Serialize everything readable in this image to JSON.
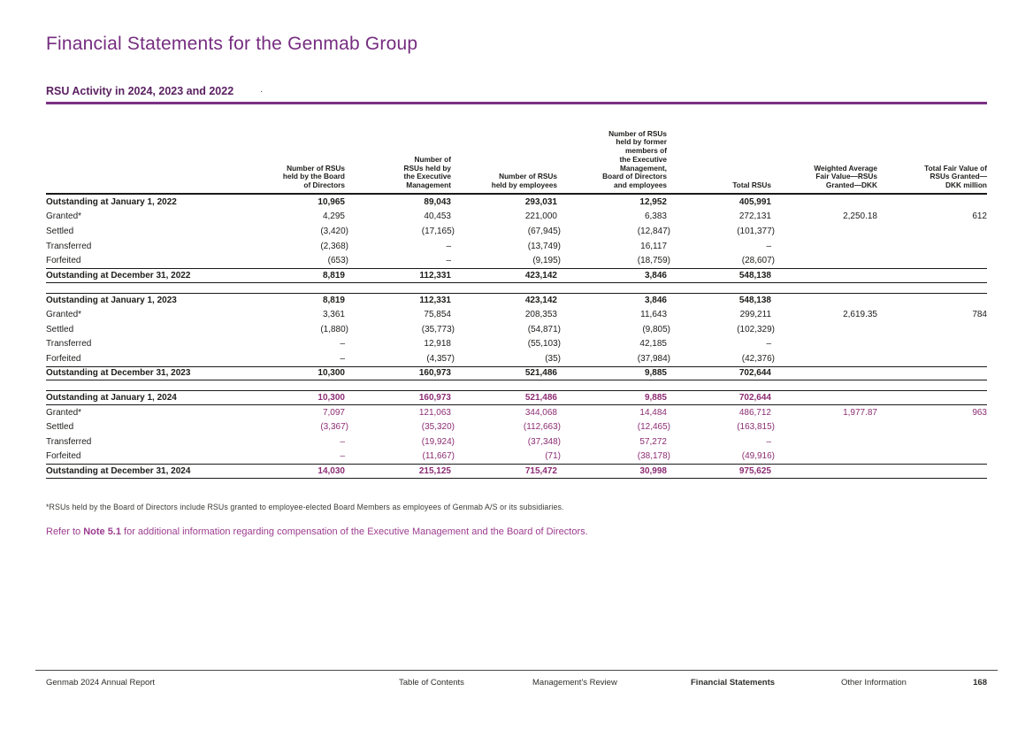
{
  "page": {
    "title": "Financial Statements for the Genmab Group",
    "section_heading": "RSU Activity in 2024, 2023 and 2022",
    "heading_dot": "·"
  },
  "colors": {
    "brand_purple": "#762d80",
    "heading_purple": "#5a2161",
    "rule_purple": "#7b3184",
    "highlight_2024_values": "#8c2d73",
    "note_purple": "#9c3b8e",
    "text_black": "#1d1d1b"
  },
  "table": {
    "column_headers": [
      "",
      "Number of RSUs\nheld by the Board\nof Directors",
      "Number of\nRSUs held by\nthe Executive\nManagement",
      "Number of RSUs\nheld by employees",
      "Number of RSUs\nheld by former\nmembers of\nthe Executive\nManagement,\nBoard of Directors\nand employees",
      "Total RSUs",
      "Weighted Average\nFair Value—RSUs\nGranted—DKK",
      "Total Fair Value of\nRSUs Granted—\nDKK million"
    ],
    "sections": [
      {
        "year": "2022",
        "highlight": false,
        "rows": [
          {
            "label": "Outstanding at January 1, 2022",
            "bold": true,
            "values": [
              "10,965",
              "89,043",
              "293,031",
              "12,952",
              "405,991",
              "",
              ""
            ]
          },
          {
            "label": "Granted*",
            "bold": false,
            "values": [
              "4,295",
              "40,453",
              "221,000",
              "6,383",
              "272,131",
              "2,250.18",
              "612"
            ]
          },
          {
            "label": "Settled",
            "bold": false,
            "values": [
              "(3,420)",
              "(17,165)",
              "(67,945)",
              "(12,847)",
              "(101,377)",
              "",
              ""
            ]
          },
          {
            "label": "Transferred",
            "bold": false,
            "values": [
              "(2,368)",
              "–",
              "(13,749)",
              "16,117",
              "–",
              "",
              ""
            ]
          },
          {
            "label": "Forfeited",
            "bold": false,
            "values": [
              "(653)",
              "–",
              "(9,195)",
              "(18,759)",
              "(28,607)",
              "",
              ""
            ]
          },
          {
            "label": "Outstanding at December 31, 2022",
            "bold": true,
            "rule_top": true,
            "rule_bottom": "thick",
            "values": [
              "8,819",
              "112,331",
              "423,142",
              "3,846",
              "548,138",
              "",
              ""
            ]
          }
        ]
      },
      {
        "year": "2023",
        "highlight": false,
        "rows": [
          {
            "label": "Outstanding at January 1, 2023",
            "bold": true,
            "rule_top": true,
            "values": [
              "8,819",
              "112,331",
              "423,142",
              "3,846",
              "548,138",
              "",
              ""
            ]
          },
          {
            "label": "Granted*",
            "bold": false,
            "values": [
              "3,361",
              "75,854",
              "208,353",
              "11,643",
              "299,211",
              "2,619.35",
              "784"
            ]
          },
          {
            "label": "Settled",
            "bold": false,
            "values": [
              "(1,880)",
              "(35,773)",
              "(54,871)",
              "(9,805)",
              "(102,329)",
              "",
              ""
            ]
          },
          {
            "label": "Transferred",
            "bold": false,
            "values": [
              "–",
              "12,918",
              "(55,103)",
              "42,185",
              "–",
              "",
              ""
            ]
          },
          {
            "label": "Forfeited",
            "bold": false,
            "values": [
              "–",
              "(4,357)",
              "(35)",
              "(37,984)",
              "(42,376)",
              "",
              ""
            ]
          },
          {
            "label": "Outstanding at December 31, 2023",
            "bold": true,
            "rule_top": true,
            "rule_bottom": "thick",
            "values": [
              "10,300",
              "160,973",
              "521,486",
              "9,885",
              "702,644",
              "",
              ""
            ]
          }
        ]
      },
      {
        "year": "2024",
        "highlight": true,
        "rows": [
          {
            "label": "Outstanding at January 1, 2024",
            "bold": true,
            "rule_top": true,
            "rule_bottom": "thin",
            "values": [
              "10,300",
              "160,973",
              "521,486",
              "9,885",
              "702,644",
              "",
              ""
            ]
          },
          {
            "label": "Granted*",
            "bold": false,
            "values": [
              "7,097",
              "121,063",
              "344,068",
              "14,484",
              "486,712",
              "1,977.87",
              "963"
            ]
          },
          {
            "label": "Settled",
            "bold": false,
            "values": [
              "(3,367)",
              "(35,320)",
              "(112,663)",
              "(12,465)",
              "(163,815)",
              "",
              ""
            ]
          },
          {
            "label": "Transferred",
            "bold": false,
            "values": [
              "–",
              "(19,924)",
              "(37,348)",
              "57,272",
              "–",
              "",
              ""
            ]
          },
          {
            "label": "Forfeited",
            "bold": false,
            "values": [
              "–",
              "(11,667)",
              "(71)",
              "(38,178)",
              "(49,916)",
              "",
              ""
            ]
          },
          {
            "label": "Outstanding at December 31, 2024",
            "bold": true,
            "rule_top": true,
            "rule_bottom": "thick",
            "values": [
              "14,030",
              "215,125",
              "715,472",
              "30,998",
              "975,625",
              "",
              ""
            ]
          }
        ]
      }
    ],
    "footnote": "*RSUs held by the Board of Directors include RSUs granted to employee-elected Board Members as employees of Genmab A/S or its subsidiaries."
  },
  "note": {
    "prefix": "Refer to ",
    "link": "Note 5.1",
    "suffix": " for additional information regarding compensation of the Executive Management and the Board of Directors."
  },
  "footer": {
    "left": "Genmab 2024 Annual Report",
    "items": [
      {
        "label": "Table of Contents",
        "active": false
      },
      {
        "label": "Management's Review",
        "active": false
      },
      {
        "label": "Financial Statements",
        "active": true
      },
      {
        "label": "Other Information",
        "active": false
      }
    ],
    "page_number": "168"
  }
}
